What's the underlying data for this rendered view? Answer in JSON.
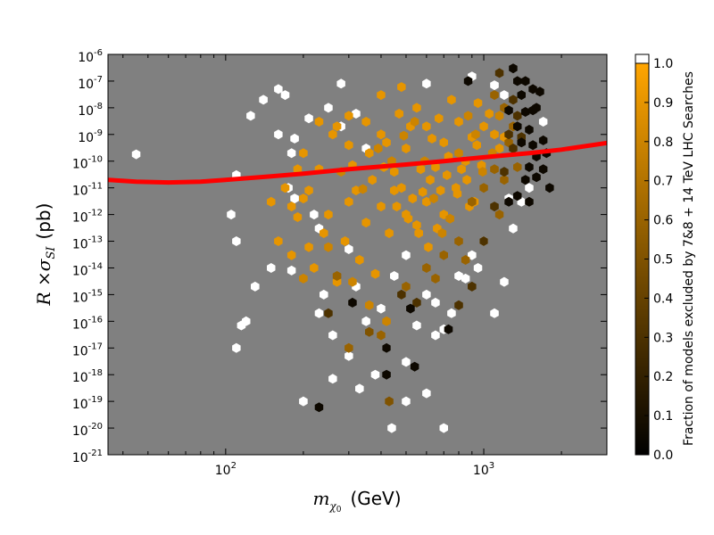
{
  "chart_data": {
    "type": "scatter",
    "subtype": "hexbin",
    "title": "",
    "xlabel": {
      "math": "m",
      "sub_symbol": "χ",
      "sub_suffix": "0",
      "unit": "(GeV)"
    },
    "ylabel": {
      "math": "R ×σ",
      "sub": "SI",
      "unit": "(pb)"
    },
    "xscale": "log",
    "yscale": "log",
    "xlim": [
      35,
      3000
    ],
    "ylim": [
      1e-21,
      1e-06
    ],
    "x_ticks": [
      {
        "value": 100,
        "label_base": "10",
        "label_exp": "2"
      },
      {
        "value": 1000,
        "label_base": "10",
        "label_exp": "3"
      }
    ],
    "y_ticks": [
      {
        "value": 1e-06,
        "label_base": "10",
        "label_exp": "-6"
      },
      {
        "value": 1e-07,
        "label_base": "10",
        "label_exp": "-7"
      },
      {
        "value": 1e-08,
        "label_base": "10",
        "label_exp": "-8"
      },
      {
        "value": 1e-09,
        "label_base": "10",
        "label_exp": "-9"
      },
      {
        "value": 1e-10,
        "label_base": "10",
        "label_exp": "-10"
      },
      {
        "value": 1e-11,
        "label_base": "10",
        "label_exp": "-11"
      },
      {
        "value": 1e-12,
        "label_base": "10",
        "label_exp": "-12"
      },
      {
        "value": 1e-13,
        "label_base": "10",
        "label_exp": "-13"
      },
      {
        "value": 1e-14,
        "label_base": "10",
        "label_exp": "-14"
      },
      {
        "value": 1e-15,
        "label_base": "10",
        "label_exp": "-15"
      },
      {
        "value": 1e-16,
        "label_base": "10",
        "label_exp": "-16"
      },
      {
        "value": 1e-17,
        "label_base": "10",
        "label_exp": "-17"
      },
      {
        "value": 1e-18,
        "label_base": "10",
        "label_exp": "-18"
      },
      {
        "value": 1e-19,
        "label_base": "10",
        "label_exp": "-19"
      },
      {
        "value": 1e-20,
        "label_base": "10",
        "label_exp": "-20"
      },
      {
        "value": 1e-21,
        "label_base": "10",
        "label_exp": "-21"
      }
    ],
    "background_color": "#808080",
    "limit_curve": {
      "color": "#ff0000",
      "x": [
        35,
        45,
        60,
        80,
        100,
        150,
        200,
        300,
        500,
        700,
        1000,
        1500,
        2000,
        3000
      ],
      "y": [
        2e-11,
        1.7e-11,
        1.6e-11,
        1.7e-11,
        2e-11,
        2.7e-11,
        3.4e-11,
        5e-11,
        7.5e-11,
        1e-10,
        1.4e-10,
        2e-10,
        2.7e-10,
        4.8e-10
      ]
    },
    "colorbar": {
      "label": "Fraction of models excluded by 7&8 + 14 TeV LHC Searches",
      "range": [
        0.0,
        1.0
      ],
      "ticks": [
        "0.0",
        "0.1",
        "0.2",
        "0.3",
        "0.4",
        "0.5",
        "0.6",
        "0.7",
        "0.8",
        "0.9",
        "1.0"
      ],
      "colormap": [
        "#000000",
        "#ffa500"
      ],
      "over_color": "#ffffff"
    },
    "points": [
      [
        170,
        3e-08,
        1.1
      ],
      [
        160,
        1e-09,
        1.1
      ],
      [
        185,
        7e-10,
        1.1
      ],
      [
        180,
        2e-10,
        1.1
      ],
      [
        175,
        1e-11,
        1.1
      ],
      [
        185,
        4e-12,
        1.1
      ],
      [
        180,
        8e-15,
        1.1
      ],
      [
        45,
        1.8e-10,
        1.1
      ],
      [
        210,
        4e-09,
        1.1
      ],
      [
        220,
        1e-12,
        1.1
      ],
      [
        230,
        3e-13,
        1.1
      ],
      [
        240,
        1e-15,
        1.1
      ],
      [
        260,
        3e-17,
        1.1
      ],
      [
        300,
        5e-18,
        1.1
      ],
      [
        200,
        1e-19,
        1.1
      ],
      [
        250,
        1e-08,
        1.1
      ],
      [
        280,
        2e-09,
        1.1
      ],
      [
        320,
        6e-09,
        1.1
      ],
      [
        350,
        3e-10,
        1.1
      ],
      [
        300,
        5e-14,
        1.1
      ],
      [
        320,
        2e-15,
        1.1
      ],
      [
        400,
        3e-16,
        1.1
      ],
      [
        420,
        1e-17,
        1.1
      ],
      [
        500,
        3e-18,
        1.1
      ],
      [
        600,
        2e-19,
        1.1
      ],
      [
        700,
        1e-20,
        1.1
      ],
      [
        800,
        5e-15,
        1.1
      ],
      [
        900,
        3e-14,
        1.1
      ],
      [
        1000,
        1e-13,
        1.1
      ],
      [
        1100,
        2e-16,
        1.1
      ],
      [
        600,
        8e-08,
        1.1
      ],
      [
        900,
        1.5e-07,
        1.1
      ],
      [
        500,
        3e-14,
        1.1
      ],
      [
        600,
        1e-15,
        1.1
      ],
      [
        650,
        5e-16,
        1.1
      ],
      [
        280,
        8e-08,
        1.1
      ],
      [
        230,
        2e-16,
        1.1
      ],
      [
        350,
        1e-16,
        1.1
      ],
      [
        380,
        1e-18,
        1.1
      ],
      [
        440,
        1e-20,
        1.1
      ],
      [
        500,
        1e-19,
        1.1
      ],
      [
        150,
        1e-14,
        1.1
      ],
      [
        130,
        2e-15,
        1.1
      ],
      [
        120,
        1e-16,
        1.1
      ],
      [
        110,
        1e-17,
        1.1
      ],
      [
        1200,
        3e-15,
        1.1
      ],
      [
        1300,
        3e-13,
        1.1
      ],
      [
        700,
        5e-17,
        1.1
      ],
      [
        330,
        3e-19,
        1.1
      ],
      [
        260,
        7e-19,
        1.1
      ],
      [
        110,
        3e-11,
        1.1
      ],
      [
        105,
        1e-12,
        1.1
      ],
      [
        110,
        1e-13,
        1.1
      ],
      [
        125,
        5e-09,
        1.1
      ],
      [
        140,
        2e-08,
        1.1
      ],
      [
        160,
        5e-08,
        1.1
      ],
      [
        1100,
        7e-08,
        1.1
      ],
      [
        1200,
        3e-08,
        1.1
      ],
      [
        450,
        5e-15,
        1.1
      ],
      [
        550,
        7e-17,
        1.1
      ],
      [
        650,
        3e-17,
        1.1
      ],
      [
        750,
        2e-16,
        1.1
      ],
      [
        850,
        4e-15,
        1.1
      ],
      [
        950,
        1e-14,
        1.1
      ],
      [
        1250,
        4e-12,
        1.1
      ],
      [
        1400,
        3e-12,
        1.1
      ],
      [
        1500,
        1e-11,
        1.1
      ],
      [
        115,
        7e-17,
        1.1
      ],
      [
        1700,
        3e-09,
        1.1
      ],
      [
        200,
        2e-10,
        0.9
      ],
      [
        230,
        5e-11,
        0.9
      ],
      [
        260,
        1e-09,
        0.9
      ],
      [
        300,
        4e-10,
        0.9
      ],
      [
        350,
        3e-09,
        0.9
      ],
      [
        400,
        1e-09,
        0.9
      ],
      [
        450,
        4e-11,
        0.9
      ],
      [
        500,
        3e-10,
        0.9
      ],
      [
        550,
        1e-08,
        0.9
      ],
      [
        600,
        2e-09,
        0.9
      ],
      [
        650,
        6e-11,
        0.9
      ],
      [
        700,
        5e-10,
        0.9
      ],
      [
        750,
        2e-08,
        0.9
      ],
      [
        800,
        3e-09,
        0.9
      ],
      [
        850,
        1e-10,
        0.9
      ],
      [
        900,
        8e-10,
        0.9
      ],
      [
        200,
        4e-12,
        0.9
      ],
      [
        250,
        1e-12,
        0.9
      ],
      [
        300,
        3e-12,
        0.9
      ],
      [
        350,
        5e-13,
        0.9
      ],
      [
        400,
        2e-12,
        0.9
      ],
      [
        450,
        8e-12,
        0.9
      ],
      [
        500,
        1e-12,
        0.9
      ],
      [
        550,
        4e-13,
        0.9
      ],
      [
        600,
        3e-12,
        0.9
      ],
      [
        700,
        1e-12,
        0.9
      ],
      [
        160,
        1e-13,
        0.9
      ],
      [
        180,
        3e-14,
        0.9
      ],
      [
        220,
        1e-14,
        0.9
      ],
      [
        270,
        3e-15,
        0.9
      ],
      [
        330,
        2e-14,
        0.9
      ],
      [
        380,
        6e-15,
        0.9
      ],
      [
        430,
        2e-13,
        0.9
      ],
      [
        480,
        1e-11,
        0.9
      ],
      [
        530,
        4e-12,
        0.9
      ],
      [
        580,
        7e-12,
        0.9
      ],
      [
        620,
        2e-11,
        0.9
      ],
      [
        680,
        8e-12,
        0.9
      ],
      [
        720,
        3e-11,
        0.9
      ],
      [
        780,
        1e-11,
        0.9
      ],
      [
        820,
        5e-11,
        0.9
      ],
      [
        880,
        2e-12,
        0.9
      ],
      [
        940,
        4e-10,
        0.9
      ],
      [
        1000,
        2e-09,
        0.9
      ],
      [
        1050,
        6e-09,
        0.9
      ],
      [
        1100,
        1e-09,
        0.9
      ],
      [
        1150,
        3e-10,
        0.9
      ],
      [
        1200,
        8e-10,
        0.9
      ],
      [
        950,
        1.5e-08,
        0.9
      ],
      [
        150,
        3e-12,
        0.9
      ],
      [
        170,
        1e-11,
        0.9
      ],
      [
        190,
        8e-13,
        0.9
      ],
      [
        210,
        6e-14,
        0.9
      ],
      [
        240,
        2e-13,
        0.9
      ],
      [
        290,
        1e-13,
        0.9
      ],
      [
        310,
        7e-11,
        0.9
      ],
      [
        370,
        2e-11,
        0.9
      ],
      [
        420,
        5e-10,
        0.9
      ],
      [
        470,
        6e-09,
        0.9
      ],
      [
        520,
        2e-09,
        0.9
      ],
      [
        570,
        5e-11,
        0.9
      ],
      [
        630,
        7e-10,
        0.9
      ],
      [
        670,
        4e-09,
        0.9
      ],
      [
        730,
        1.5e-10,
        0.9
      ],
      [
        790,
        6e-12,
        0.9
      ],
      [
        860,
        2e-11,
        0.9
      ],
      [
        920,
        3e-12,
        0.9
      ],
      [
        980,
        7e-11,
        0.9
      ],
      [
        270,
        2e-09,
        0.9
      ],
      [
        320,
        8e-12,
        0.9
      ],
      [
        360,
        2e-10,
        0.9
      ],
      [
        410,
        6e-11,
        0.9
      ],
      [
        460,
        2e-12,
        0.9
      ],
      [
        510,
        7e-13,
        0.9
      ],
      [
        560,
        2e-13,
        0.9
      ],
      [
        610,
        6e-14,
        0.9
      ],
      [
        660,
        3e-13,
        0.9
      ],
      [
        400,
        3e-08,
        0.9
      ],
      [
        480,
        6e-08,
        0.9
      ],
      [
        300,
        5e-09,
        0.9
      ],
      [
        230,
        3e-09,
        0.9
      ],
      [
        190,
        5e-11,
        0.9
      ],
      [
        210,
        8e-12,
        0.9
      ],
      [
        180,
        2e-12,
        0.9
      ],
      [
        280,
        4e-11,
        0.8
      ],
      [
        340,
        9e-12,
        0.8
      ],
      [
        390,
        3e-10,
        0.8
      ],
      [
        440,
        1e-10,
        0.8
      ],
      [
        490,
        9e-10,
        0.8
      ],
      [
        540,
        3e-09,
        0.8
      ],
      [
        590,
        1e-10,
        0.8
      ],
      [
        640,
        4e-12,
        0.8
      ],
      [
        690,
        2e-13,
        0.8
      ],
      [
        740,
        7e-13,
        0.8
      ],
      [
        800,
        2e-10,
        0.8
      ],
      [
        870,
        5e-09,
        0.8
      ],
      [
        930,
        1e-09,
        0.8
      ],
      [
        990,
        4e-11,
        0.8
      ],
      [
        1080,
        2e-10,
        0.8
      ],
      [
        1150,
        5e-09,
        0.8
      ],
      [
        250,
        6e-14,
        0.8
      ],
      [
        310,
        3e-15,
        0.8
      ],
      [
        360,
        4e-16,
        0.8
      ],
      [
        420,
        1e-16,
        0.8
      ],
      [
        200,
        4e-15,
        0.8
      ],
      [
        1100,
        3e-08,
        0.6
      ],
      [
        1200,
        1e-08,
        0.6
      ],
      [
        1250,
        5e-10,
        0.6
      ],
      [
        1300,
        2e-09,
        0.6
      ],
      [
        1100,
        5e-11,
        0.6
      ],
      [
        1000,
        1e-11,
        0.6
      ],
      [
        900,
        3e-12,
        0.6
      ],
      [
        800,
        1e-13,
        0.6
      ],
      [
        700,
        3e-14,
        0.6
      ],
      [
        600,
        1e-14,
        0.6
      ],
      [
        650,
        4e-15,
        0.6
      ],
      [
        500,
        2e-15,
        0.6
      ],
      [
        400,
        3e-17,
        0.6
      ],
      [
        300,
        1e-17,
        0.6
      ],
      [
        270,
        5e-15,
        0.6
      ],
      [
        1350,
        6e-11,
        0.6
      ],
      [
        1200,
        2e-11,
        0.6
      ],
      [
        850,
        2e-14,
        0.6
      ],
      [
        1150,
        1e-12,
        0.6
      ],
      [
        430,
        1e-19,
        0.5
      ],
      [
        360,
        4e-17,
        0.5
      ],
      [
        1300,
        2e-08,
        0.3
      ],
      [
        1350,
        5e-09,
        0.3
      ],
      [
        1250,
        1e-09,
        0.3
      ],
      [
        1400,
        8e-10,
        0.3
      ],
      [
        1300,
        3e-10,
        0.3
      ],
      [
        1200,
        4e-11,
        0.3
      ],
      [
        1100,
        2e-12,
        0.3
      ],
      [
        1000,
        1e-13,
        0.3
      ],
      [
        900,
        2e-15,
        0.3
      ],
      [
        550,
        5e-16,
        0.3
      ],
      [
        480,
        1e-15,
        0.3
      ],
      [
        250,
        2e-16,
        0.3
      ],
      [
        800,
        4e-16,
        0.3
      ],
      [
        1150,
        2e-07,
        0.3
      ],
      [
        1350,
        1e-07,
        0.05
      ],
      [
        1400,
        3e-08,
        0.05
      ],
      [
        1450,
        7e-09,
        0.05
      ],
      [
        1500,
        1.5e-09,
        0.05
      ],
      [
        1550,
        4e-10,
        0.05
      ],
      [
        1600,
        1.5e-10,
        0.05
      ],
      [
        1500,
        6e-11,
        0.05
      ],
      [
        1450,
        2e-11,
        0.05
      ],
      [
        1350,
        5e-12,
        0.05
      ],
      [
        1250,
        3e-12,
        0.05
      ],
      [
        1600,
        1e-08,
        0.05
      ],
      [
        1700,
        6e-10,
        0.05
      ],
      [
        1650,
        4e-08,
        0.05
      ],
      [
        1300,
        3e-07,
        0.05
      ],
      [
        1400,
        2e-06,
        0.05
      ],
      [
        1550,
        5e-08,
        0.05
      ],
      [
        1750,
        2e-10,
        0.05
      ],
      [
        1800,
        1e-11,
        0.05
      ],
      [
        1600,
        2.5e-11,
        0.05
      ],
      [
        1450,
        1e-07,
        0.05
      ],
      [
        1250,
        8e-09,
        0.05
      ],
      [
        1350,
        2e-09,
        0.05
      ],
      [
        1700,
        5e-11,
        0.05
      ],
      [
        1500,
        3e-12,
        0.05
      ],
      [
        520,
        3e-16,
        0.05
      ],
      [
        420,
        1e-17,
        0.05
      ],
      [
        540,
        2e-18,
        0.05
      ],
      [
        730,
        5e-17,
        0.05
      ],
      [
        230,
        6e-20,
        0.05
      ],
      [
        420,
        1e-18,
        0.05
      ],
      [
        310,
        5e-16,
        0.05
      ],
      [
        870,
        1e-07,
        0.05
      ],
      [
        1400,
        5e-10,
        0.05
      ],
      [
        1550,
        8e-09,
        0.05
      ]
    ]
  }
}
